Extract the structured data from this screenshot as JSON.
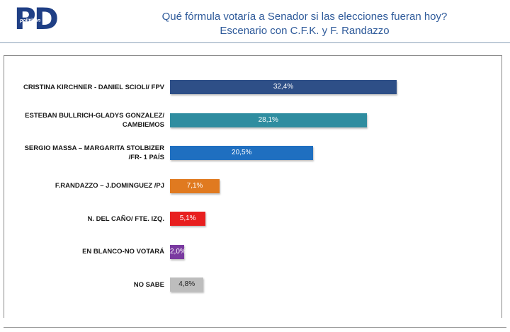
{
  "header": {
    "logo_sub": "politikon",
    "title": "Qué fórmula votaría a Senador si las elecciones fueran hoy?",
    "subtitle": "Escenario con C.F.K. y F. Randazzo"
  },
  "chart_data": {
    "type": "bar",
    "orientation": "horizontal",
    "categories": [
      "CRISTINA KIRCHNER - DANIEL SCIOLI/ FPV",
      "ESTEBAN BULLRICH-GLADYS GONZALEZ/ CAMBIEMOS",
      "SERGIO MASSA – MARGARITA STOLBIZER /FR- 1 PAÍS",
      "F.RANDAZZO – J.DOMINGUEZ /PJ",
      "N. DEL CAÑO/ FTE. IZQ.",
      "EN BLANCO-NO VOTARÁ",
      "NO SABE"
    ],
    "values": [
      32.4,
      28.1,
      20.5,
      7.1,
      5.1,
      2.0,
      4.8
    ],
    "value_labels": [
      "32,4%",
      "28,1%",
      "20,5%",
      "7,1%",
      "5,1%",
      "2,0%",
      "4,8%"
    ],
    "colors": [
      "#2e4f87",
      "#2f8da0",
      "#1f6fc0",
      "#e07a20",
      "#e81f1f",
      "#7a3aa0",
      "#bdbdbd"
    ],
    "xlim": [
      0,
      100
    ],
    "grid": false,
    "legend": "none"
  }
}
